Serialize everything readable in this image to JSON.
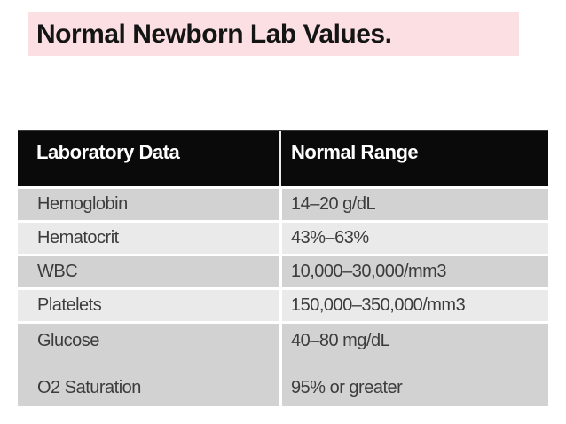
{
  "title": "Normal Newborn Lab Values.",
  "table": {
    "headers": [
      "Laboratory Data",
      "Normal Range"
    ],
    "rows": [
      {
        "label": "Hemoglobin",
        "value": "14–20 g/dL"
      },
      {
        "label": "Hematocrit",
        "value": "43%–63%"
      },
      {
        "label": "WBC",
        "value": "10,000–30,000/mm3"
      },
      {
        "label": "Platelets",
        "value": "150,000–350,000/mm3"
      },
      {
        "label": "Glucose",
        "value": "40–80 mg/dL"
      },
      {
        "label": "O2 Saturation",
        "value": "95% or greater"
      }
    ]
  },
  "colors": {
    "title_background": "#fbdfe3",
    "title_text": "#141414",
    "header_background": "#0a0a0a",
    "header_text": "#ffffff",
    "row_dark": "#d2d2d2",
    "row_light": "#eaeaea",
    "row_text": "#3c3c3c",
    "page_background": "#ffffff"
  }
}
